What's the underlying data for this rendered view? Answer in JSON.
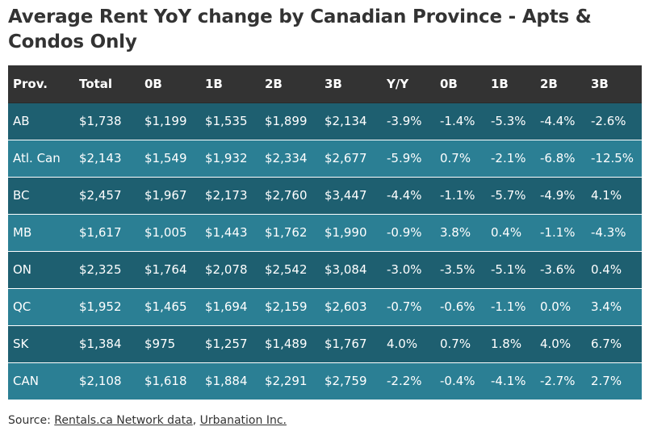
{
  "chart_data": {
    "type": "table",
    "title": "Average Rent YoY change by Canadian Province - Apts & Condos Only",
    "columns": [
      "Prov.",
      "Total",
      "0B",
      "1B",
      "2B",
      "3B",
      "Y/Y",
      "0B",
      "1B",
      "2B",
      "3B"
    ],
    "rows": [
      [
        "AB",
        "$1,738",
        "$1,199",
        "$1,535",
        "$1,899",
        "$2,134",
        "-3.9%",
        "-1.4%",
        "-5.3%",
        "-4.4%",
        "-2.6%"
      ],
      [
        "Atl. Can",
        "$2,143",
        "$1,549",
        "$1,932",
        "$2,334",
        "$2,677",
        "-5.9%",
        "0.7%",
        "-2.1%",
        "-6.8%",
        "-12.5%"
      ],
      [
        "BC",
        "$2,457",
        "$1,967",
        "$2,173",
        "$2,760",
        "$3,447",
        "-4.4%",
        "-1.1%",
        "-5.7%",
        "-4.9%",
        "4.1%"
      ],
      [
        "MB",
        "$1,617",
        "$1,005",
        "$1,443",
        "$1,762",
        "$1,990",
        "-0.9%",
        "3.8%",
        "0.4%",
        "-1.1%",
        "-4.3%"
      ],
      [
        "ON",
        "$2,325",
        "$1,764",
        "$2,078",
        "$2,542",
        "$3,084",
        "-3.0%",
        "-3.5%",
        "-5.1%",
        "-3.6%",
        "0.4%"
      ],
      [
        "QC",
        "$1,952",
        "$1,465",
        "$1,694",
        "$2,159",
        "$2,603",
        "-0.7%",
        "-0.6%",
        "-1.1%",
        "0.0%",
        "3.4%"
      ],
      [
        "SK",
        "$1,384",
        "$975",
        "$1,257",
        "$1,489",
        "$1,767",
        "4.0%",
        "0.7%",
        "1.8%",
        "4.0%",
        "6.7%"
      ],
      [
        "CAN",
        "$2,108",
        "$1,618",
        "$1,884",
        "$2,291",
        "$2,759",
        "-2.2%",
        "-0.4%",
        "-4.1%",
        "-2.7%",
        "2.7%"
      ]
    ]
  },
  "source": {
    "prefix": "Source: ",
    "link1": "Rentals.ca Network data",
    "separator": ", ",
    "link2": "Urbanation Inc."
  },
  "colors": {
    "header_bg": "#333333",
    "row_dark": "#1e5f70",
    "row_light": "#2b7f94",
    "text_light": "#ffffff"
  }
}
